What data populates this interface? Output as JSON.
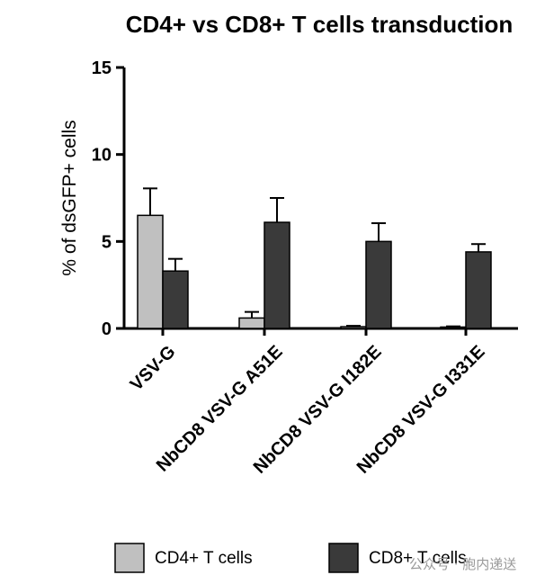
{
  "chart_data": {
    "type": "bar",
    "title": "CD4+ vs CD8+ T cells transduction",
    "xlabel": "",
    "ylabel": "% of dsGFP+ cells",
    "ylim": [
      0,
      15
    ],
    "yticks": [
      "0",
      "5",
      "10",
      "15"
    ],
    "categories": [
      "VSV-G",
      "NbCD8 VSV-G A51E",
      "NbCD8 VSV-G I182E",
      "NbCD8 VSV-G I331E"
    ],
    "series": [
      {
        "name": "CD4+ T cells",
        "color": "#c0c0c0",
        "values": [
          6.5,
          0.6,
          0.1,
          0.08
        ],
        "errors": [
          1.55,
          0.35,
          0.05,
          0.04
        ]
      },
      {
        "name": "CD8+ T cells",
        "color": "#3a3a3a",
        "values": [
          3.3,
          6.1,
          5.0,
          4.4
        ],
        "errors": [
          0.7,
          1.4,
          1.05,
          0.45
        ]
      }
    ],
    "error_bars": "upper",
    "grid": false,
    "legend_position": "bottom"
  },
  "watermark": {
    "text": "公众号 · 胞内递送"
  }
}
